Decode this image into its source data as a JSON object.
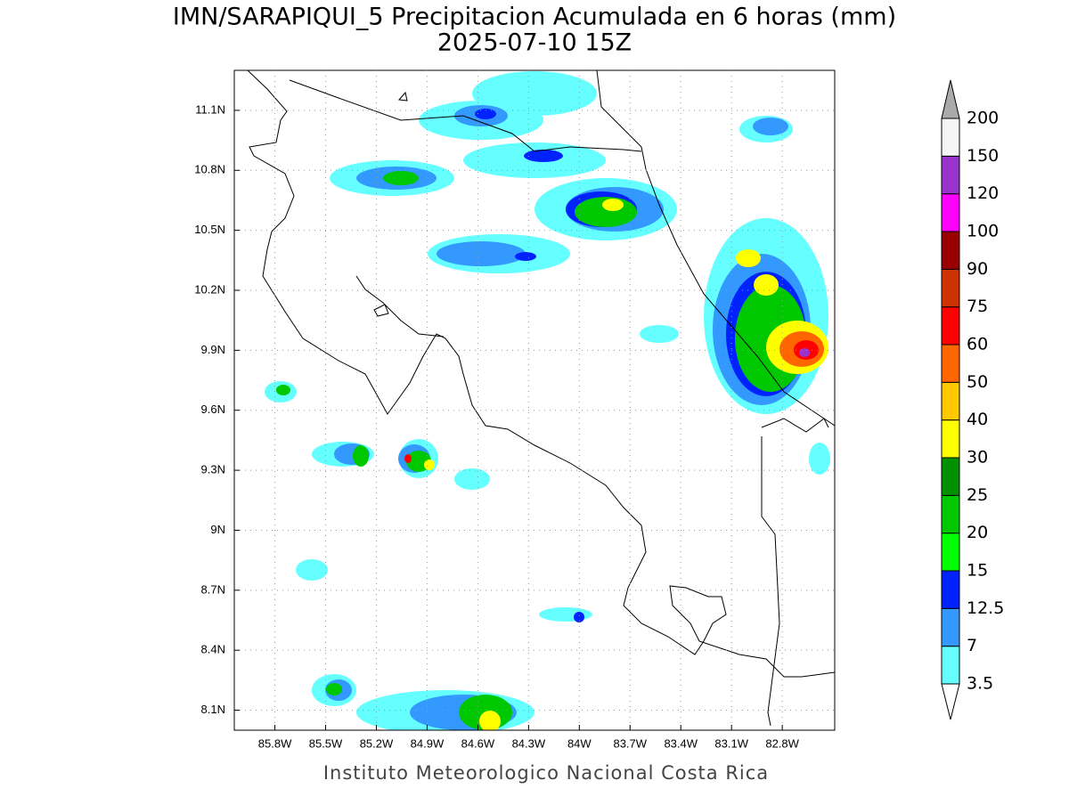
{
  "chart_data": {
    "type": "contour-map",
    "title": "IMN/SARAPIQUI_5 Precipitacion Acumulada en 6 horas (mm)",
    "subtitle": "2025-07-10 15Z",
    "footer": "Instituto Meteorologico Nacional Costa Rica",
    "xlim": [
      -86.04,
      -82.49
    ],
    "ylim": [
      8.0,
      11.3
    ],
    "xticks": [
      {
        "value": -85.8,
        "label": "85.8W"
      },
      {
        "value": -85.5,
        "label": "85.5W"
      },
      {
        "value": -85.2,
        "label": "85.2W"
      },
      {
        "value": -84.9,
        "label": "84.9W"
      },
      {
        "value": -84.6,
        "label": "84.6W"
      },
      {
        "value": -84.3,
        "label": "84.3W"
      },
      {
        "value": -84.0,
        "label": "84W"
      },
      {
        "value": -83.7,
        "label": "83.7W"
      },
      {
        "value": -83.4,
        "label": "83.4W"
      },
      {
        "value": -83.1,
        "label": "83.1W"
      },
      {
        "value": -82.8,
        "label": "82.8W"
      }
    ],
    "yticks": [
      {
        "value": 8.1,
        "label": "8.1N"
      },
      {
        "value": 8.4,
        "label": "8.4N"
      },
      {
        "value": 8.7,
        "label": "8.7N"
      },
      {
        "value": 9.0,
        "label": "9N"
      },
      {
        "value": 9.3,
        "label": "9.3N"
      },
      {
        "value": 9.6,
        "label": "9.6N"
      },
      {
        "value": 9.9,
        "label": "9.9N"
      },
      {
        "value": 10.2,
        "label": "10.2N"
      },
      {
        "value": 10.5,
        "label": "10.5N"
      },
      {
        "value": 10.8,
        "label": "10.8N"
      },
      {
        "value": 11.1,
        "label": "11.1N"
      }
    ],
    "grid": true,
    "colorbar": {
      "levels": [
        3.5,
        7,
        12.5,
        15,
        20,
        25,
        30,
        40,
        50,
        60,
        75,
        90,
        100,
        120,
        150,
        200
      ],
      "colors": [
        "#66ffff",
        "#3399ff",
        "#0022ff",
        "#00ff00",
        "#00c800",
        "#009000",
        "#ffff00",
        "#ffc800",
        "#ff6600",
        "#ff0000",
        "#cc3300",
        "#990000",
        "#ff00ff",
        "#9933cc",
        "#f5f5f5"
      ],
      "under_color": "#ffffff",
      "over_color": "#aaaaaa"
    }
  }
}
